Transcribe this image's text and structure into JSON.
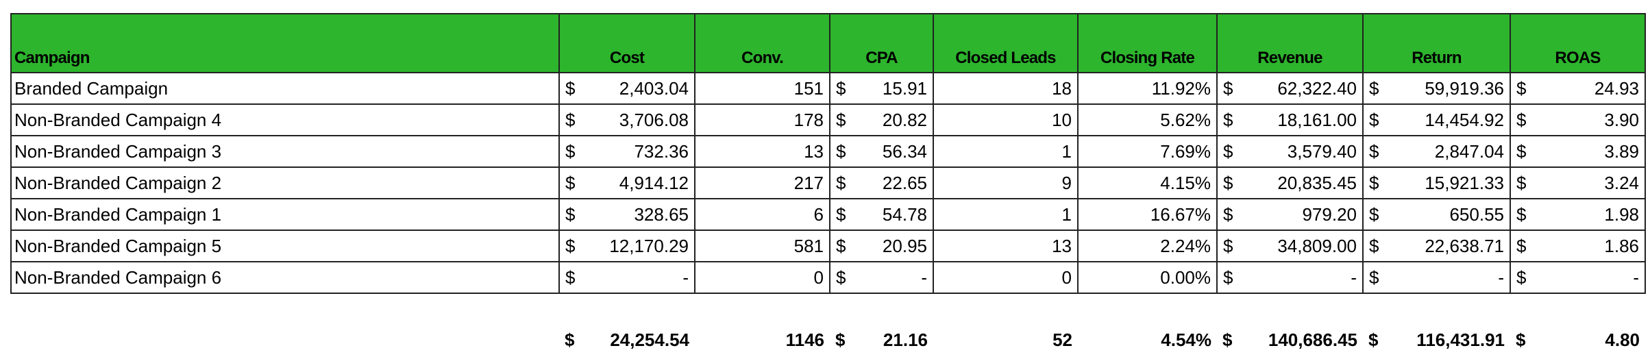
{
  "table": {
    "header": [
      "Campaign",
      "Cost",
      "Conv.",
      "CPA",
      "Closed Leads",
      "Closing Rate",
      "Revenue",
      "Return",
      "ROAS"
    ],
    "rows": [
      [
        "Branded Campaign",
        {
          "currency": "$",
          "amount": "2,403.04"
        },
        "151",
        {
          "currency": "$",
          "amount": "15.91"
        },
        "18",
        "11.92%",
        {
          "currency": "$",
          "amount": "62,322.40"
        },
        {
          "currency": "$",
          "amount": "59,919.36"
        },
        {
          "currency": "$",
          "amount": "24.93"
        }
      ],
      [
        "Non-Branded Campaign 4",
        {
          "currency": "$",
          "amount": "3,706.08"
        },
        "178",
        {
          "currency": "$",
          "amount": "20.82"
        },
        "10",
        "5.62%",
        {
          "currency": "$",
          "amount": "18,161.00"
        },
        {
          "currency": "$",
          "amount": "14,454.92"
        },
        {
          "currency": "$",
          "amount": "3.90"
        }
      ],
      [
        "Non-Branded Campaign 3",
        {
          "currency": "$",
          "amount": "732.36"
        },
        "13",
        {
          "currency": "$",
          "amount": "56.34"
        },
        "1",
        "7.69%",
        {
          "currency": "$",
          "amount": "3,579.40"
        },
        {
          "currency": "$",
          "amount": "2,847.04"
        },
        {
          "currency": "$",
          "amount": "3.89"
        }
      ],
      [
        "Non-Branded Campaign 2",
        {
          "currency": "$",
          "amount": "4,914.12"
        },
        "217",
        {
          "currency": "$",
          "amount": "22.65"
        },
        "9",
        "4.15%",
        {
          "currency": "$",
          "amount": "20,835.45"
        },
        {
          "currency": "$",
          "amount": "15,921.33"
        },
        {
          "currency": "$",
          "amount": "3.24"
        }
      ],
      [
        "Non-Branded Campaign 1",
        {
          "currency": "$",
          "amount": "328.65"
        },
        "6",
        {
          "currency": "$",
          "amount": "54.78"
        },
        "1",
        "16.67%",
        {
          "currency": "$",
          "amount": "979.20"
        },
        {
          "currency": "$",
          "amount": "650.55"
        },
        {
          "currency": "$",
          "amount": "1.98"
        }
      ],
      [
        "Non-Branded Campaign 5",
        {
          "currency": "$",
          "amount": "12,170.29"
        },
        "581",
        {
          "currency": "$",
          "amount": "20.95"
        },
        "13",
        "2.24%",
        {
          "currency": "$",
          "amount": "34,809.00"
        },
        {
          "currency": "$",
          "amount": "22,638.71"
        },
        {
          "currency": "$",
          "amount": "1.86"
        }
      ],
      [
        "Non-Branded Campaign 6",
        {
          "currency": "$",
          "amount": "-"
        },
        "0",
        {
          "currency": "$",
          "amount": "-"
        },
        "0",
        "0.00%",
        {
          "currency": "$",
          "amount": "-"
        },
        {
          "currency": "$",
          "amount": "-"
        },
        {
          "currency": "$",
          "amount": "-"
        }
      ]
    ],
    "totals": [
      {
        "currency": "$",
        "amount": "24,254.54"
      },
      "1146",
      {
        "currency": "$",
        "amount": "21.16"
      },
      "52",
      "4.54%",
      {
        "currency": "$",
        "amount": "140,686.45"
      },
      {
        "currency": "$",
        "amount": "116,431.91"
      },
      {
        "currency": "$",
        "amount": "4.80"
      }
    ]
  }
}
